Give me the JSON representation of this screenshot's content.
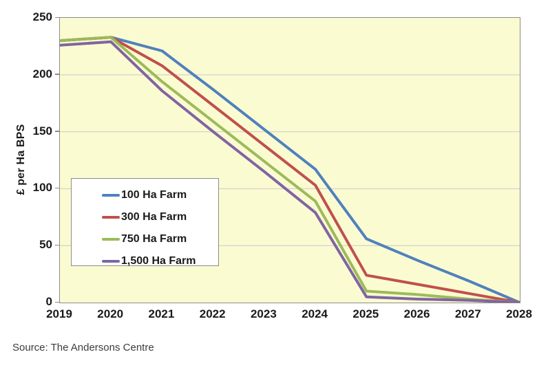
{
  "chart_data": {
    "type": "line",
    "title": "",
    "xlabel": "",
    "ylabel": "£ per Ha BPS",
    "x": [
      2019,
      2020,
      2021,
      2022,
      2023,
      2024,
      2025,
      2026,
      2027,
      2028
    ],
    "xtick_labels": [
      "2019",
      "2020",
      "2021",
      "2022",
      "2023",
      "2024",
      "2025",
      "2026",
      "2027",
      "2028"
    ],
    "ylim": [
      0,
      250
    ],
    "ytick_interval": 50,
    "ytick_labels": [
      "0",
      "50",
      "100",
      "150",
      "200",
      "250"
    ],
    "grid": "horizontal-only",
    "legend_position": "inside-upper-left-of-lower-half",
    "series": [
      {
        "name": "100 Ha Farm",
        "color": "#4F81BD",
        "values": [
          230,
          233,
          221,
          187,
          152,
          117,
          56,
          37,
          19,
          0
        ]
      },
      {
        "name": "300 Ha Farm",
        "color": "#C0504D",
        "values": [
          230,
          233,
          208,
          173,
          138,
          103,
          24,
          16,
          8,
          0
        ]
      },
      {
        "name": "750 Ha Farm",
        "color": "#9BBB59",
        "values": [
          230,
          233,
          194,
          159,
          124,
          89,
          10,
          7,
          3,
          0
        ]
      },
      {
        "name": "1,500 Ha Farm",
        "color": "#8064A2",
        "values": [
          226,
          229,
          186,
          150,
          115,
          79,
          5,
          3,
          2,
          0
        ]
      }
    ],
    "source": "Source: The Andersons Centre",
    "colors": {
      "plot_background": "#FBFBD2",
      "page_background": "#FFFFFF",
      "gridline": "#D6D6CB",
      "plot_border": "#8C8C86",
      "axis_text": "#1A1A1A",
      "source_text": "#3C3C3C"
    }
  }
}
